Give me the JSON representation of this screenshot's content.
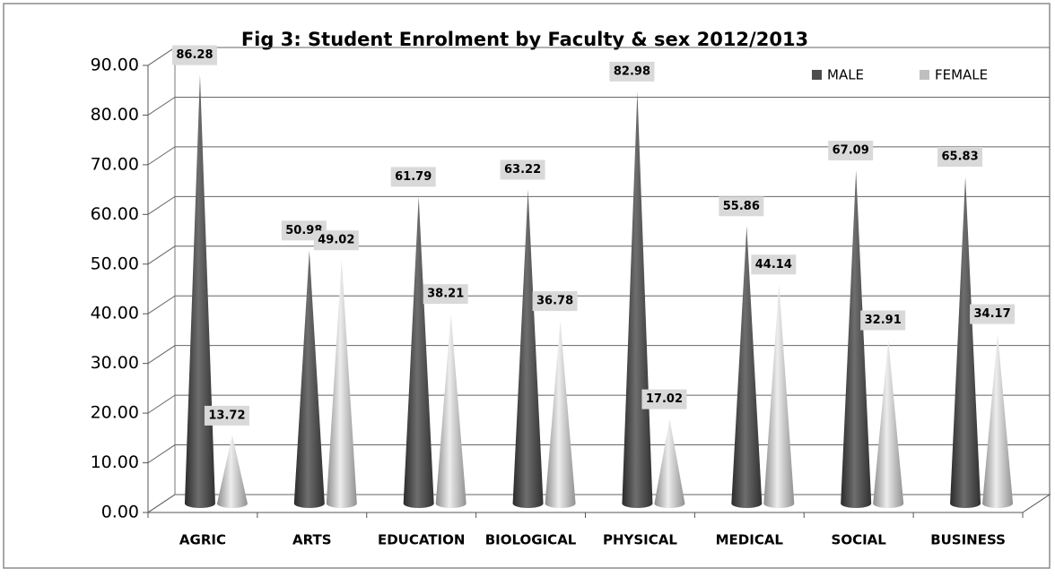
{
  "chart_data": {
    "type": "cone",
    "title": "Fig 3: Student Enrolment by Faculty & sex 2012/2013",
    "categories": [
      "AGRIC",
      "ARTS",
      "EDUCATION",
      "BIOLOGICAL",
      "PHYSICAL",
      "MEDICAL",
      "SOCIAL",
      "BUSINESS"
    ],
    "series": [
      {
        "name": "MALE",
        "color": "#4d4d4d",
        "values": [
          86.28,
          50.98,
          61.79,
          63.22,
          82.98,
          55.86,
          67.09,
          65.83
        ]
      },
      {
        "name": "FEMALE",
        "color": "#bfbfbf",
        "values": [
          13.72,
          49.02,
          38.21,
          36.78,
          17.02,
          44.14,
          32.91,
          34.17
        ]
      }
    ],
    "ylim": [
      0,
      90
    ],
    "yticks": [
      {
        "value": 0,
        "label": "0.00"
      },
      {
        "value": 10,
        "label": "10.00"
      },
      {
        "value": 20,
        "label": "20.00"
      },
      {
        "value": 30,
        "label": "30.00"
      },
      {
        "value": 40,
        "label": "40.00"
      },
      {
        "value": 50,
        "label": "50.00"
      },
      {
        "value": 60,
        "label": "60.00"
      },
      {
        "value": 70,
        "label": "70.00"
      },
      {
        "value": 80,
        "label": "80.00"
      },
      {
        "value": 90,
        "label": "90.00"
      }
    ],
    "grid": true,
    "legend": "top-right"
  }
}
